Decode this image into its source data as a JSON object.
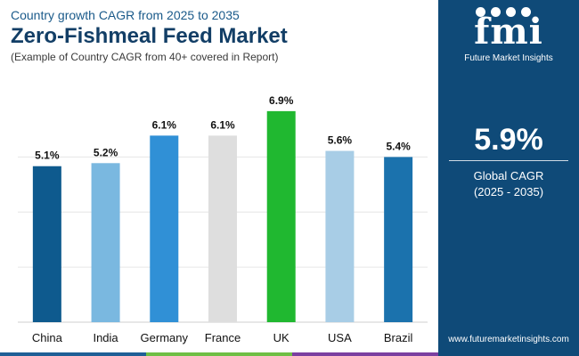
{
  "header": {
    "subtitle_top": "Country growth CAGR from 2025 to 2035",
    "title": "Zero-Fishmeal Feed Market",
    "subtitle_bottom": "(Example of Country CAGR from 40+ covered in Report)"
  },
  "sidebar": {
    "logo_text": "fmi",
    "company": "Future Market Insights",
    "global_value": "5.9%",
    "global_label": "Global CAGR",
    "global_range": "(2025 - 2035)",
    "website": "www.futuremarketinsights.com"
  },
  "colors": {
    "sidebar_bg": "#0f4a78",
    "strip": [
      "#1f5f96",
      "#6fbf44",
      "#7b3fa0"
    ]
  },
  "chart_data": {
    "type": "bar",
    "categories": [
      "China",
      "India",
      "Germany",
      "France",
      "UK",
      "USA",
      "Brazil"
    ],
    "values": [
      5.1,
      5.2,
      6.1,
      6.1,
      6.9,
      5.6,
      5.4
    ],
    "labels": [
      "5.1%",
      "5.2%",
      "6.1%",
      "6.1%",
      "6.9%",
      "5.6%",
      "5.4%"
    ],
    "colors": [
      "#0e5a8e",
      "#7ab8e0",
      "#3090d6",
      "#dedede",
      "#20b830",
      "#a8cde6",
      "#1b72ad"
    ],
    "ylim": [
      0,
      7.1
    ],
    "gridlines": [
      0,
      1.8,
      3.6,
      5.4
    ],
    "title": "Zero-Fishmeal Feed Market",
    "xlabel": "",
    "ylabel": ""
  }
}
